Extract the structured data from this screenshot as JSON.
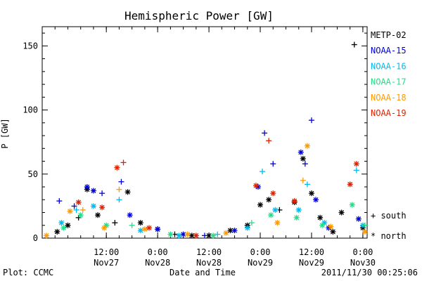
{
  "chart_data": {
    "type": "scatter",
    "title": "Hemispheric Power [GW]",
    "xlabel": "Date and Time",
    "ylabel": "P [GW]",
    "x_range": [
      "2011-11-26 21:00",
      "2011-11-30 01:00"
    ],
    "ylim": [
      0,
      165
    ],
    "y_ticks": [
      0,
      50,
      100,
      150
    ],
    "x_ticks": [
      {
        "time": "2011-11-27 12:00",
        "line1": "12:00",
        "line2": "Nov27"
      },
      {
        "time": "2011-11-28 00:00",
        "line1": "0:00",
        "line2": "Nov28"
      },
      {
        "time": "2011-11-28 12:00",
        "line1": "12:00",
        "line2": "Nov28"
      },
      {
        "time": "2011-11-29 00:00",
        "line1": "0:00",
        "line2": "Nov29"
      },
      {
        "time": "2011-11-29 12:00",
        "line1": "12:00",
        "line2": "Nov29"
      },
      {
        "time": "2011-11-30 00:00",
        "line1": "0:00",
        "line2": "Nov30"
      }
    ],
    "marker_legend": [
      {
        "label": "south",
        "symbol": "+"
      },
      {
        "label": "north",
        "symbol": "*"
      }
    ],
    "series": [
      {
        "name": "METP-02",
        "color": "#000000",
        "points": [
          {
            "t": "2011-11-27 00:30",
            "v": 5,
            "hemi": "north"
          },
          {
            "t": "2011-11-27 03:00",
            "v": 10,
            "hemi": "north"
          },
          {
            "t": "2011-11-27 05:30",
            "v": 16,
            "hemi": "south"
          },
          {
            "t": "2011-11-27 07:30",
            "v": 38,
            "hemi": "north"
          },
          {
            "t": "2011-11-27 10:00",
            "v": 18,
            "hemi": "north"
          },
          {
            "t": "2011-11-27 14:00",
            "v": 12,
            "hemi": "south"
          },
          {
            "t": "2011-11-27 17:00",
            "v": 36,
            "hemi": "north"
          },
          {
            "t": "2011-11-27 20:00",
            "v": 12,
            "hemi": "north"
          },
          {
            "t": "2011-11-28 00:00",
            "v": 7,
            "hemi": "north"
          },
          {
            "t": "2011-11-28 04:00",
            "v": 3,
            "hemi": "south"
          },
          {
            "t": "2011-11-28 08:00",
            "v": 2,
            "hemi": "north"
          },
          {
            "t": "2011-11-28 12:00",
            "v": 2,
            "hemi": "north"
          },
          {
            "t": "2011-11-28 17:00",
            "v": 6,
            "hemi": "north"
          },
          {
            "t": "2011-11-28 21:00",
            "v": 10,
            "hemi": "north"
          },
          {
            "t": "2011-11-29 00:00",
            "v": 26,
            "hemi": "north"
          },
          {
            "t": "2011-11-29 02:00",
            "v": 30,
            "hemi": "north"
          },
          {
            "t": "2011-11-29 04:30",
            "v": 22,
            "hemi": "south"
          },
          {
            "t": "2011-11-29 08:00",
            "v": 28,
            "hemi": "north"
          },
          {
            "t": "2011-11-29 10:00",
            "v": 62,
            "hemi": "north"
          },
          {
            "t": "2011-11-29 12:00",
            "v": 35,
            "hemi": "north"
          },
          {
            "t": "2011-11-29 14:00",
            "v": 16,
            "hemi": "north"
          },
          {
            "t": "2011-11-29 17:00",
            "v": 5,
            "hemi": "north"
          },
          {
            "t": "2011-11-29 19:00",
            "v": 20,
            "hemi": "north"
          },
          {
            "t": "2011-11-29 22:00",
            "v": 151,
            "hemi": "south"
          },
          {
            "t": "2011-11-30 00:00",
            "v": 8,
            "hemi": "north"
          }
        ]
      },
      {
        "name": "NOAA-15",
        "color": "#0000dd",
        "points": [
          {
            "t": "2011-11-27 01:00",
            "v": 29,
            "hemi": "south"
          },
          {
            "t": "2011-11-27 04:30",
            "v": 25,
            "hemi": "south"
          },
          {
            "t": "2011-11-27 07:30",
            "v": 40,
            "hemi": "north"
          },
          {
            "t": "2011-11-27 09:00",
            "v": 37,
            "hemi": "north"
          },
          {
            "t": "2011-11-27 11:00",
            "v": 35,
            "hemi": "south"
          },
          {
            "t": "2011-11-27 15:30",
            "v": 44,
            "hemi": "south"
          },
          {
            "t": "2011-11-27 17:30",
            "v": 18,
            "hemi": "north"
          },
          {
            "t": "2011-11-28 00:00",
            "v": 7,
            "hemi": "north"
          },
          {
            "t": "2011-11-28 06:00",
            "v": 3,
            "hemi": "north"
          },
          {
            "t": "2011-11-28 11:00",
            "v": 2,
            "hemi": "south"
          },
          {
            "t": "2011-11-28 18:00",
            "v": 6,
            "hemi": "north"
          },
          {
            "t": "2011-11-28 23:30",
            "v": 40,
            "hemi": "north"
          },
          {
            "t": "2011-11-29 01:00",
            "v": 82,
            "hemi": "south"
          },
          {
            "t": "2011-11-29 03:00",
            "v": 58,
            "hemi": "south"
          },
          {
            "t": "2011-11-29 09:30",
            "v": 67,
            "hemi": "north"
          },
          {
            "t": "2011-11-29 10:30",
            "v": 58,
            "hemi": "south"
          },
          {
            "t": "2011-11-29 12:00",
            "v": 92,
            "hemi": "south"
          },
          {
            "t": "2011-11-29 13:00",
            "v": 30,
            "hemi": "north"
          },
          {
            "t": "2011-11-29 16:00",
            "v": 8,
            "hemi": "north"
          },
          {
            "t": "2011-11-29 23:00",
            "v": 15,
            "hemi": "north"
          }
        ]
      },
      {
        "name": "NOAA-16",
        "color": "#00bbee",
        "points": [
          {
            "t": "2011-11-27 01:30",
            "v": 12,
            "hemi": "north"
          },
          {
            "t": "2011-11-27 05:00",
            "v": 22,
            "hemi": "south"
          },
          {
            "t": "2011-11-27 09:00",
            "v": 25,
            "hemi": "north"
          },
          {
            "t": "2011-11-27 15:00",
            "v": 30,
            "hemi": "south"
          },
          {
            "t": "2011-11-27 20:00",
            "v": 6,
            "hemi": "north"
          },
          {
            "t": "2011-11-28 05:00",
            "v": 2,
            "hemi": "north"
          },
          {
            "t": "2011-11-28 14:00",
            "v": 3,
            "hemi": "south"
          },
          {
            "t": "2011-11-28 21:00",
            "v": 8,
            "hemi": "north"
          },
          {
            "t": "2011-11-29 00:30",
            "v": 52,
            "hemi": "south"
          },
          {
            "t": "2011-11-29 03:30",
            "v": 22,
            "hemi": "north"
          },
          {
            "t": "2011-11-29 09:00",
            "v": 22,
            "hemi": "north"
          },
          {
            "t": "2011-11-29 11:00",
            "v": 42,
            "hemi": "south"
          },
          {
            "t": "2011-11-29 15:00",
            "v": 12,
            "hemi": "north"
          },
          {
            "t": "2011-11-29 22:30",
            "v": 53,
            "hemi": "south"
          },
          {
            "t": "2011-11-30 00:00",
            "v": 10,
            "hemi": "north"
          }
        ]
      },
      {
        "name": "NOAA-17",
        "color": "#22dd88",
        "points": [
          {
            "t": "2011-11-27 02:00",
            "v": 8,
            "hemi": "north"
          },
          {
            "t": "2011-11-27 06:00",
            "v": 18,
            "hemi": "north"
          },
          {
            "t": "2011-11-27 12:00",
            "v": 10,
            "hemi": "north"
          },
          {
            "t": "2011-11-27 18:00",
            "v": 10,
            "hemi": "south"
          },
          {
            "t": "2011-11-28 03:00",
            "v": 3,
            "hemi": "north"
          },
          {
            "t": "2011-11-28 13:00",
            "v": 2,
            "hemi": "north"
          },
          {
            "t": "2011-11-28 22:00",
            "v": 12,
            "hemi": "south"
          },
          {
            "t": "2011-11-29 02:30",
            "v": 18,
            "hemi": "north"
          },
          {
            "t": "2011-11-29 08:30",
            "v": 16,
            "hemi": "north"
          },
          {
            "t": "2011-11-29 14:30",
            "v": 10,
            "hemi": "north"
          },
          {
            "t": "2011-11-29 21:30",
            "v": 26,
            "hemi": "north"
          },
          {
            "t": "2011-11-30 00:30",
            "v": 10,
            "hemi": "south"
          }
        ]
      },
      {
        "name": "NOAA-18",
        "color": "#ff9900",
        "points": [
          {
            "t": "2011-11-26 22:00",
            "v": 2,
            "hemi": "north"
          },
          {
            "t": "2011-11-27 03:30",
            "v": 21,
            "hemi": "north"
          },
          {
            "t": "2011-11-27 06:30",
            "v": 22,
            "hemi": "south"
          },
          {
            "t": "2011-11-27 11:30",
            "v": 8,
            "hemi": "north"
          },
          {
            "t": "2011-11-27 15:00",
            "v": 38,
            "hemi": "south"
          },
          {
            "t": "2011-11-27 21:00",
            "v": 7,
            "hemi": "north"
          },
          {
            "t": "2011-11-28 07:00",
            "v": 3,
            "hemi": "north"
          },
          {
            "t": "2011-11-28 16:00",
            "v": 4,
            "hemi": "north"
          },
          {
            "t": "2011-11-29 04:00",
            "v": 12,
            "hemi": "north"
          },
          {
            "t": "2011-11-29 10:00",
            "v": 45,
            "hemi": "south"
          },
          {
            "t": "2011-11-29 11:00",
            "v": 72,
            "hemi": "north"
          },
          {
            "t": "2011-11-29 16:30",
            "v": 9,
            "hemi": "north"
          },
          {
            "t": "2011-11-30 00:30",
            "v": 5,
            "hemi": "north"
          }
        ]
      },
      {
        "name": "NOAA-19",
        "color": "#dd2200",
        "points": [
          {
            "t": "2011-11-27 05:30",
            "v": 28,
            "hemi": "north"
          },
          {
            "t": "2011-11-27 11:00",
            "v": 24,
            "hemi": "north"
          },
          {
            "t": "2011-11-27 14:30",
            "v": 55,
            "hemi": "north"
          },
          {
            "t": "2011-11-27 16:00",
            "v": 59,
            "hemi": "south"
          },
          {
            "t": "2011-11-27 22:00",
            "v": 8,
            "hemi": "north"
          },
          {
            "t": "2011-11-28 09:00",
            "v": 2,
            "hemi": "north"
          },
          {
            "t": "2011-11-28 23:00",
            "v": 41,
            "hemi": "north"
          },
          {
            "t": "2011-11-29 02:00",
            "v": 76,
            "hemi": "south"
          },
          {
            "t": "2011-11-29 03:00",
            "v": 35,
            "hemi": "north"
          },
          {
            "t": "2011-11-29 08:00",
            "v": 29,
            "hemi": "north"
          },
          {
            "t": "2011-11-29 21:00",
            "v": 42,
            "hemi": "north"
          },
          {
            "t": "2011-11-29 22:30",
            "v": 58,
            "hemi": "north"
          }
        ]
      }
    ]
  },
  "footer": {
    "left": "Plot: CCMC",
    "right": "2011/11/30 00:25:06"
  }
}
